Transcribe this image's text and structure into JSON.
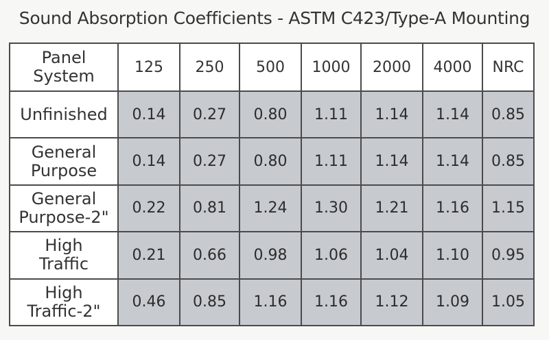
{
  "title": "Sound Absorption Coefficients - ASTM C423/Type-A Mounting",
  "table": {
    "corner": [
      "Panel",
      "System"
    ],
    "columns": [
      "125",
      "250",
      "500",
      "1000",
      "2000",
      "4000",
      "NRC"
    ],
    "rows": [
      {
        "label": [
          "Unfinished"
        ],
        "values": [
          "0.14",
          "0.27",
          "0.80",
          "1.11",
          "1.14",
          "1.14",
          "0.85"
        ]
      },
      {
        "label": [
          "General",
          "Purpose"
        ],
        "values": [
          "0.14",
          "0.27",
          "0.80",
          "1.11",
          "1.14",
          "1.14",
          "0.85"
        ]
      },
      {
        "label": [
          "General",
          "Purpose-2\""
        ],
        "values": [
          "0.22",
          "0.81",
          "1.24",
          "1.30",
          "1.21",
          "1.16",
          "1.15"
        ]
      },
      {
        "label": [
          "High",
          "Traffic"
        ],
        "values": [
          "0.21",
          "0.66",
          "0.98",
          "1.06",
          "1.04",
          "1.10",
          "0.95"
        ]
      },
      {
        "label": [
          "High",
          "Traffic-2\""
        ],
        "values": [
          "0.46",
          "0.85",
          "1.16",
          "1.16",
          "1.12",
          "1.09",
          "1.05"
        ]
      }
    ]
  }
}
